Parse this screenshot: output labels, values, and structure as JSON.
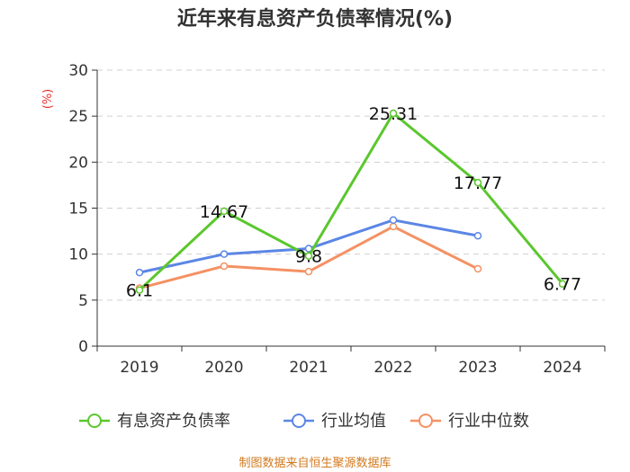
{
  "chart_data": {
    "type": "line",
    "title": "近年来有息资产负债率情况(%)",
    "ylabel": "(%)",
    "xlabel": "",
    "categories": [
      "2019",
      "2020",
      "2021",
      "2022",
      "2023",
      "2024"
    ],
    "ylim": [
      0,
      30
    ],
    "yticks": [
      0,
      5,
      10,
      15,
      20,
      25,
      30
    ],
    "grid": true,
    "legend_position": "bottom",
    "series": [
      {
        "name": "有息资产负债率",
        "color": "#5ac72d",
        "values": [
          6.1,
          14.67,
          9.8,
          25.31,
          17.77,
          6.77
        ],
        "labels": [
          "6.1",
          "14.67",
          "9.8",
          "25.31",
          "17.77",
          "6.77"
        ]
      },
      {
        "name": "行业均值",
        "color": "#5b86e5",
        "values": [
          8.0,
          10.0,
          10.6,
          13.7,
          12.0,
          null
        ]
      },
      {
        "name": "行业中位数",
        "color": "#f59163",
        "values": [
          6.3,
          8.7,
          8.1,
          13.0,
          8.4,
          null
        ]
      }
    ]
  },
  "source": "制图数据来自恒生聚源数据库"
}
